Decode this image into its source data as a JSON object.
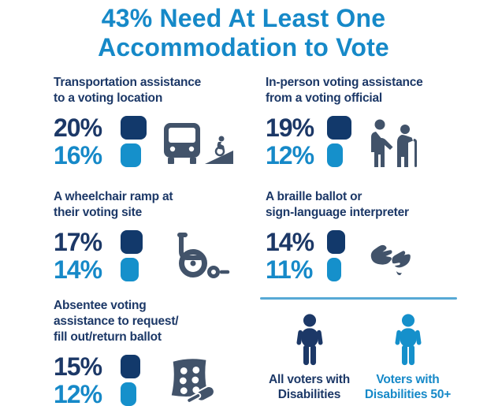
{
  "title": "43% Need At Least One\nAccommodation to Vote",
  "colors": {
    "blue": "#1689C8",
    "blue_fill": "#1590CB",
    "navy": "#1C3867",
    "navy_fill": "#12396B",
    "slate": "#42536A",
    "divider": "#57A9D5"
  },
  "chart_data": {
    "type": "bar",
    "title": "43% Need At Least One Accommodation to Vote",
    "categories": [
      "Transportation assistance to a voting location",
      "In-person voting assistance from a voting official",
      "A wheelchair ramp at their voting site",
      "A braille ballot or sign-language interpreter",
      "Absentee voting assistance to request/fill out/return ballot"
    ],
    "series": [
      {
        "name": "All voters with Disabilities",
        "color": "#12396B",
        "values": [
          20,
          19,
          17,
          14,
          15
        ]
      },
      {
        "name": "Voters with Disabilities 50+",
        "color": "#1590CB",
        "values": [
          16,
          12,
          14,
          11,
          12
        ]
      }
    ],
    "unit": "%",
    "legend_position": "bottom-right",
    "grid": false
  },
  "sections": [
    {
      "title": "Transportation assistance\nto a voting location",
      "all_pct": "20%",
      "all_value": 20,
      "senior_pct": "16%",
      "senior_value": 16,
      "icon": "bus-ramp-icon"
    },
    {
      "title": "In-person voting assistance\nfrom a voting official",
      "all_pct": "19%",
      "all_value": 19,
      "senior_pct": "12%",
      "senior_value": 12,
      "icon": "elder-assist-icon"
    },
    {
      "title": "A wheelchair ramp at\ntheir voting site",
      "all_pct": "17%",
      "all_value": 17,
      "senior_pct": "14%",
      "senior_value": 14,
      "icon": "wheelchair-icon"
    },
    {
      "title": "A braille ballot or\nsign-language interpreter",
      "all_pct": "14%",
      "all_value": 14,
      "senior_pct": "11%",
      "senior_value": 11,
      "icon": "sign-language-icon"
    },
    {
      "title": "Absentee voting\nassistance to request/\nfill out/return ballot",
      "all_pct": "15%",
      "all_value": 15,
      "senior_pct": "12%",
      "senior_value": 12,
      "icon": "ballot-hand-icon"
    }
  ],
  "legend": {
    "all": {
      "label": "All voters with\nDisabilities"
    },
    "senior": {
      "label": "Voters with\nDisabilities 50+"
    }
  }
}
